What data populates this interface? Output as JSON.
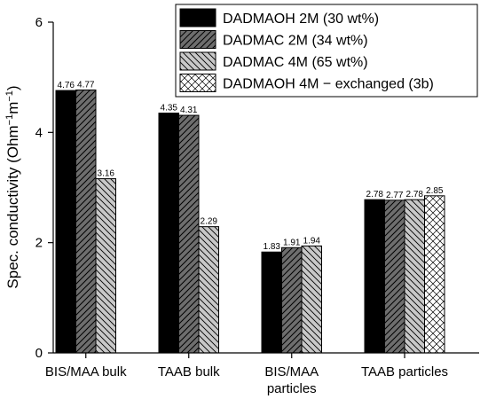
{
  "chart_data": {
    "type": "bar",
    "categories": [
      {
        "line1": "BIS/MAA bulk",
        "line2": ""
      },
      {
        "line1": "TAAB bulk",
        "line2": ""
      },
      {
        "line1": "BIS/MAA",
        "line2": "particles"
      },
      {
        "line1": "TAAB particles",
        "line2": ""
      }
    ],
    "series": [
      {
        "name": "DADMAOH 2M (30 wt%)",
        "pattern": "solid-black",
        "values": [
          4.76,
          4.35,
          1.83,
          2.78
        ],
        "labels": [
          "4.76",
          "4.35",
          "1.83",
          "2.78"
        ]
      },
      {
        "name": "DADMAC 2M (34 wt%)",
        "pattern": "dark-gray-hatch",
        "values": [
          4.77,
          4.31,
          1.91,
          2.77
        ],
        "labels": [
          "4.77",
          "4.31",
          "1.91",
          "2.77"
        ]
      },
      {
        "name": "DADMAC 4M (65 wt%)",
        "pattern": "light-gray-backslash-hatch",
        "values": [
          3.16,
          2.29,
          1.94,
          2.78
        ],
        "labels": [
          "3.16",
          "2.29",
          "1.94",
          "2.78"
        ]
      },
      {
        "name": "DADMAOH 4M − exchanged (3b)",
        "pattern": "white-crosshatch",
        "values": [
          null,
          null,
          null,
          2.85
        ],
        "labels": [
          "",
          "",
          "",
          "2.85"
        ]
      }
    ],
    "ylabel": {
      "base": "Spec. conductivity (Ohm",
      "sup1": "−1",
      "mid": "m",
      "sup2": "−1",
      "end": ")"
    },
    "ylim": [
      0,
      6
    ],
    "yticks": [
      0,
      2,
      4,
      6
    ],
    "grid": false,
    "legend_position": "top-right",
    "colors": {
      "solid": "#000000",
      "dark": "#6e6e6e",
      "light": "#c8c8c8",
      "white": "#ffffff",
      "hatch": "#000000"
    }
  }
}
